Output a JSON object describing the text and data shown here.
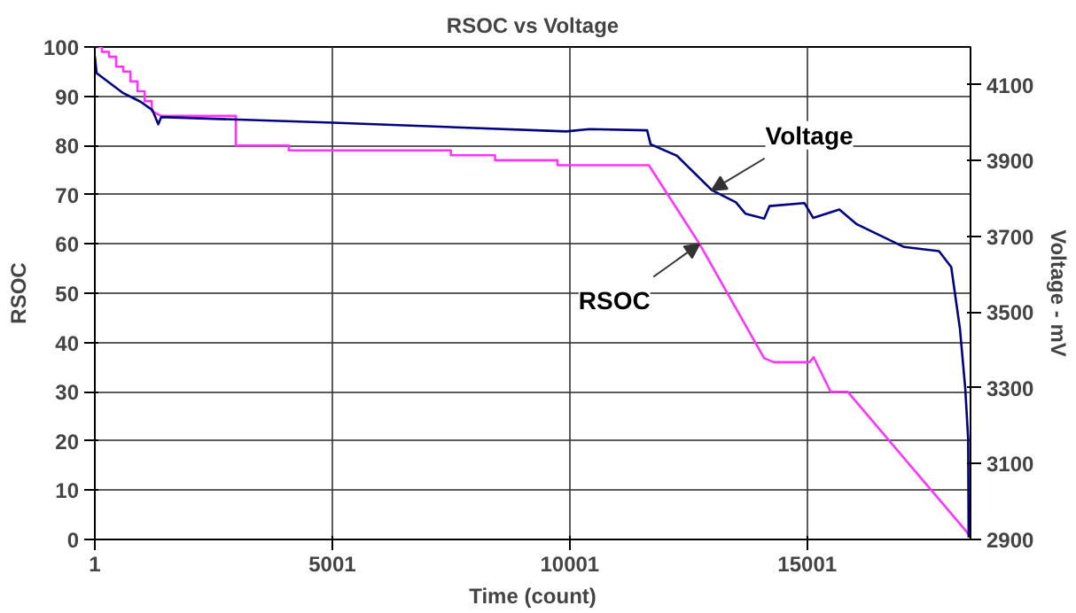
{
  "chart_data": {
    "type": "line",
    "title": "RSOC vs Voltage",
    "xlabel": "Time (count)",
    "ylabel": "RSOC",
    "y2label": "Voltage - mV",
    "xlim": [
      1,
      18440
    ],
    "xticks": [
      1,
      5001,
      10001,
      15001
    ],
    "ylim": [
      0,
      100
    ],
    "yticks": [
      0,
      10,
      20,
      30,
      40,
      50,
      60,
      70,
      80,
      90,
      100
    ],
    "y2lim": [
      2900,
      4200
    ],
    "y2ticks": [
      2900,
      3100,
      3300,
      3500,
      3700,
      3900,
      4100
    ],
    "grid": true,
    "marker": "none",
    "line_style": "solid",
    "series": [
      {
        "name": "RSOC",
        "color": "#ff33ff",
        "x": [
          1,
          150,
          150,
          300,
          300,
          450,
          450,
          600,
          600,
          750,
          750,
          900,
          900,
          1050,
          1050,
          1200,
          1200,
          1400,
          2971,
          2971,
          4086,
          4086,
          7497,
          7497,
          8428,
          8428,
          9742,
          9742,
          11667,
          12734,
          14095,
          14300,
          15050,
          15137,
          15494,
          15851,
          18365,
          18440
        ],
        "values": [
          100,
          100,
          99,
          99,
          98,
          98,
          96,
          96,
          95,
          95,
          93,
          93,
          91,
          91,
          89,
          89,
          87,
          86,
          86,
          80,
          80,
          79,
          79,
          78,
          78,
          77,
          77,
          76,
          76,
          60,
          36.8,
          36,
          36,
          37,
          30,
          30,
          1.5,
          0.5
        ]
      },
      {
        "name": "Voltage",
        "color": "#000080",
        "axis": "y2",
        "x": [
          1,
          38,
          601,
          969,
          1215,
          1337,
          1399,
          5017,
          9926,
          10415,
          11630,
          11704,
          12256,
          12992,
          13500,
          13700,
          14096,
          14206,
          14942,
          15126,
          15678,
          16046,
          17040,
          17776,
          18034,
          18218,
          18328,
          18390,
          18400
        ],
        "values": [
          4176,
          4131,
          4078,
          4055,
          4033,
          3996,
          4015,
          4000,
          3977,
          3983,
          3980,
          3943,
          3913,
          3822,
          3790,
          3760,
          3747,
          3780,
          3788,
          3749,
          3771,
          3732,
          3672,
          3661,
          3619,
          3455,
          3300,
          3167,
          2905
        ]
      }
    ]
  }
}
